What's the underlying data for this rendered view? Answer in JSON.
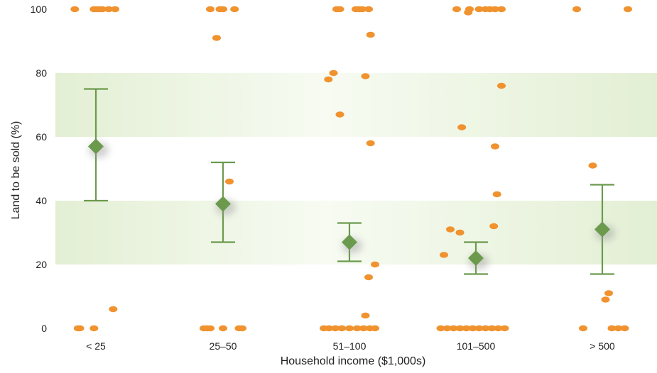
{
  "chart_data": {
    "type": "scatter",
    "xlabel": "Household income ($1,000s)",
    "ylabel": "Land to be sold (%)",
    "categories": [
      "< 25",
      "25–50",
      "51–100",
      "101–500",
      "> 500"
    ],
    "yticks": [
      0,
      20,
      40,
      60,
      80,
      100
    ],
    "ylim": [
      0,
      100
    ],
    "grid": "alternating horizontal bands",
    "colors": {
      "points": "#f0922e",
      "means": "#6b9a4d",
      "band": "#e3efd4"
    },
    "points": [
      {
        "c": 0,
        "x": -0.33,
        "y": 100
      },
      {
        "c": 0,
        "x": -0.03,
        "y": 100
      },
      {
        "c": 0,
        "x": 0.02,
        "y": 100
      },
      {
        "c": 0,
        "x": 0.05,
        "y": 100
      },
      {
        "c": 0,
        "x": 0.1,
        "y": 100
      },
      {
        "c": 0,
        "x": 0.2,
        "y": 100
      },
      {
        "c": 0,
        "x": 0.3,
        "y": 100
      },
      {
        "c": 0,
        "x": 0.27,
        "y": 6
      },
      {
        "c": 0,
        "x": -0.28,
        "y": 0
      },
      {
        "c": 0,
        "x": -0.25,
        "y": 0
      },
      {
        "c": 0,
        "x": -0.03,
        "y": 0
      },
      {
        "c": 1,
        "x": -0.2,
        "y": 100
      },
      {
        "c": 1,
        "x": -0.05,
        "y": 100
      },
      {
        "c": 1,
        "x": 0.0,
        "y": 100
      },
      {
        "c": 1,
        "x": 0.18,
        "y": 100
      },
      {
        "c": 1,
        "x": -0.1,
        "y": 91
      },
      {
        "c": 1,
        "x": 0.1,
        "y": 46
      },
      {
        "c": 1,
        "x": -0.3,
        "y": 0
      },
      {
        "c": 1,
        "x": -0.25,
        "y": 0
      },
      {
        "c": 1,
        "x": -0.2,
        "y": 0
      },
      {
        "c": 1,
        "x": 0.0,
        "y": 0
      },
      {
        "c": 1,
        "x": 0.25,
        "y": 0
      },
      {
        "c": 1,
        "x": 0.3,
        "y": 0
      },
      {
        "c": 2,
        "x": -0.2,
        "y": 100
      },
      {
        "c": 2,
        "x": -0.15,
        "y": 100
      },
      {
        "c": 2,
        "x": 0.1,
        "y": 100
      },
      {
        "c": 2,
        "x": 0.15,
        "y": 100
      },
      {
        "c": 2,
        "x": 0.2,
        "y": 100
      },
      {
        "c": 2,
        "x": 0.3,
        "y": 100
      },
      {
        "c": 2,
        "x": 0.33,
        "y": 92
      },
      {
        "c": 2,
        "x": -0.25,
        "y": 80
      },
      {
        "c": 2,
        "x": -0.33,
        "y": 78
      },
      {
        "c": 2,
        "x": 0.25,
        "y": 79
      },
      {
        "c": 2,
        "x": -0.15,
        "y": 67
      },
      {
        "c": 2,
        "x": 0.33,
        "y": 58
      },
      {
        "c": 2,
        "x": 0.4,
        "y": 20
      },
      {
        "c": 2,
        "x": 0.3,
        "y": 16
      },
      {
        "c": 2,
        "x": 0.25,
        "y": 4
      },
      {
        "c": 2,
        "x": -0.4,
        "y": 0
      },
      {
        "c": 2,
        "x": -0.32,
        "y": 0
      },
      {
        "c": 2,
        "x": -0.22,
        "y": 0
      },
      {
        "c": 2,
        "x": -0.12,
        "y": 0
      },
      {
        "c": 2,
        "x": 0.0,
        "y": 0
      },
      {
        "c": 2,
        "x": 0.12,
        "y": 0
      },
      {
        "c": 2,
        "x": 0.22,
        "y": 0
      },
      {
        "c": 2,
        "x": 0.32,
        "y": 0
      },
      {
        "c": 2,
        "x": 0.4,
        "y": 0
      },
      {
        "c": 3,
        "x": -0.3,
        "y": 100
      },
      {
        "c": 3,
        "x": -0.1,
        "y": 100
      },
      {
        "c": 3,
        "x": 0.05,
        "y": 100
      },
      {
        "c": 3,
        "x": 0.15,
        "y": 100
      },
      {
        "c": 3,
        "x": 0.22,
        "y": 100
      },
      {
        "c": 3,
        "x": 0.3,
        "y": 100
      },
      {
        "c": 3,
        "x": 0.4,
        "y": 100
      },
      {
        "c": 3,
        "x": -0.12,
        "y": 99
      },
      {
        "c": 3,
        "x": 0.4,
        "y": 76
      },
      {
        "c": 3,
        "x": -0.22,
        "y": 63
      },
      {
        "c": 3,
        "x": 0.3,
        "y": 57
      },
      {
        "c": 3,
        "x": 0.33,
        "y": 42
      },
      {
        "c": 3,
        "x": 0.28,
        "y": 32
      },
      {
        "c": 3,
        "x": -0.4,
        "y": 31
      },
      {
        "c": 3,
        "x": -0.25,
        "y": 30
      },
      {
        "c": 3,
        "x": -0.5,
        "y": 23
      },
      {
        "c": 3,
        "x": -0.55,
        "y": 0
      },
      {
        "c": 3,
        "x": -0.45,
        "y": 0
      },
      {
        "c": 3,
        "x": -0.35,
        "y": 0
      },
      {
        "c": 3,
        "x": -0.25,
        "y": 0
      },
      {
        "c": 3,
        "x": -0.15,
        "y": 0
      },
      {
        "c": 3,
        "x": -0.05,
        "y": 0
      },
      {
        "c": 3,
        "x": 0.05,
        "y": 0
      },
      {
        "c": 3,
        "x": 0.15,
        "y": 0
      },
      {
        "c": 3,
        "x": 0.25,
        "y": 0
      },
      {
        "c": 3,
        "x": 0.35,
        "y": 0
      },
      {
        "c": 3,
        "x": 0.45,
        "y": 0
      },
      {
        "c": 4,
        "x": -0.4,
        "y": 100
      },
      {
        "c": 4,
        "x": 0.4,
        "y": 100
      },
      {
        "c": 4,
        "x": -0.15,
        "y": 51
      },
      {
        "c": 4,
        "x": 0.1,
        "y": 11
      },
      {
        "c": 4,
        "x": 0.05,
        "y": 9
      },
      {
        "c": 4,
        "x": -0.3,
        "y": 0
      },
      {
        "c": 4,
        "x": 0.15,
        "y": 0
      },
      {
        "c": 4,
        "x": 0.25,
        "y": 0
      },
      {
        "c": 4,
        "x": 0.35,
        "y": 0
      }
    ],
    "means": [
      {
        "c": 0,
        "mean": 57,
        "low": 40,
        "high": 75
      },
      {
        "c": 1,
        "mean": 39,
        "low": 27,
        "high": 52
      },
      {
        "c": 2,
        "mean": 27,
        "low": 21,
        "high": 33
      },
      {
        "c": 3,
        "mean": 22,
        "low": 17,
        "high": 27
      },
      {
        "c": 4,
        "mean": 31,
        "low": 17,
        "high": 45
      }
    ]
  }
}
